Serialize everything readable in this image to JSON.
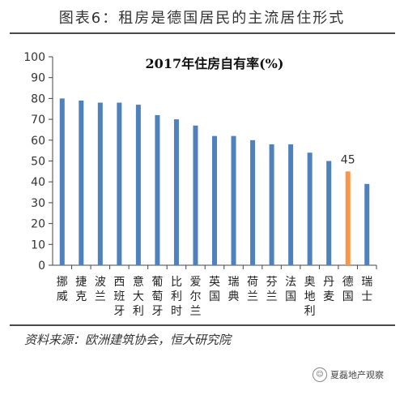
{
  "figure_title": "图表6：租房是德国居民的主流居住形式",
  "source": "资料来源：欧洲建筑协会，恒大研究院",
  "watermark": {
    "icon": "wechat-icon",
    "text": "夏磊地产观察"
  },
  "colors": {
    "bar": "#4f81bd",
    "highlight": "#f79646",
    "axis": "#444444"
  },
  "chart_data": {
    "type": "bar",
    "title": "2017年住房自有率(%)",
    "xlabel": "",
    "ylabel": "",
    "ylim": [
      0,
      100
    ],
    "yticks": [
      0,
      10,
      20,
      30,
      40,
      50,
      60,
      70,
      80,
      90,
      100
    ],
    "categories": [
      "挪威",
      "捷克",
      "波兰",
      "西班牙",
      "意大利",
      "葡萄牙",
      "比利时",
      "爱尔兰",
      "英国",
      "瑞典",
      "荷兰",
      "芬兰",
      "法国",
      "奥地利",
      "丹麦",
      "德国",
      "瑞士"
    ],
    "values": [
      80,
      79,
      78,
      78,
      77,
      72,
      70,
      67,
      62,
      62,
      60,
      58,
      58,
      54,
      50,
      45,
      39
    ],
    "highlight_category": "德国",
    "data_labels": [
      {
        "category": "德国",
        "text": "45"
      }
    ],
    "grid": false,
    "legend": "none"
  }
}
